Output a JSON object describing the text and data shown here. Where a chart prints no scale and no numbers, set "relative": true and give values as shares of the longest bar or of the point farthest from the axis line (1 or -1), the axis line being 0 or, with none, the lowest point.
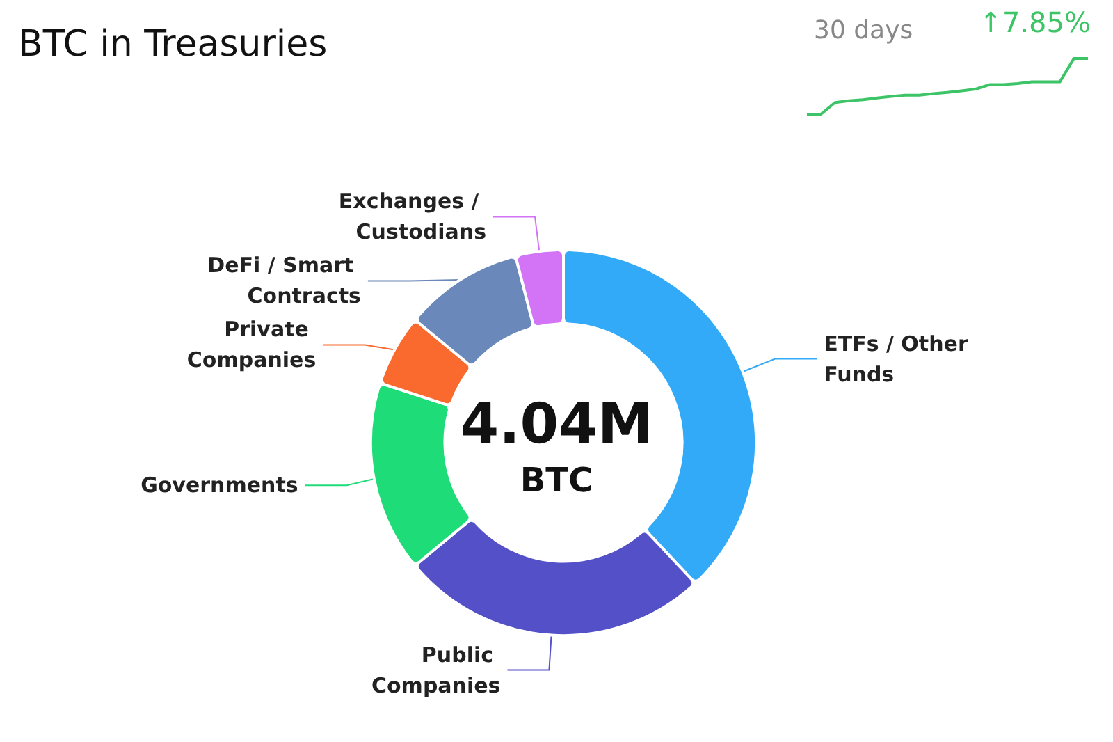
{
  "chart_data": [
    {
      "type": "donut",
      "title": "BTC in Treasuries",
      "categories": [
        "ETFs / Other Funds",
        "Public Companies",
        "Governments",
        "Private Companies",
        "DeFi / Smart Contracts",
        "Exchanges / Custodians"
      ],
      "values": [
        38,
        26,
        16,
        6,
        10,
        4
      ],
      "colors": [
        "#33aaf7",
        "#5450c8",
        "#1edc78",
        "#fa6a2e",
        "#6a88ba",
        "#d274f5"
      ],
      "annotations": [
        "4.04M",
        "BTC"
      ]
    },
    {
      "type": "line",
      "title": "30 days",
      "annotations": [
        "↑7.85%"
      ],
      "relative": true,
      "categories": [
        null,
        null,
        null,
        null,
        null,
        null,
        null,
        null,
        null,
        null,
        null,
        null,
        null,
        null,
        null,
        null,
        null,
        null,
        null,
        null,
        null
      ],
      "series": [
        {
          "color": "#3cc466",
          "values": [
            0,
            0,
            0.21,
            0.24,
            0.26,
            0.29,
            0.32,
            0.34,
            0.34,
            0.37,
            0.39,
            0.42,
            0.45,
            0.53,
            0.53,
            0.55,
            0.58,
            0.58,
            0.58,
            1,
            1
          ]
        }
      ]
    }
  ]
}
